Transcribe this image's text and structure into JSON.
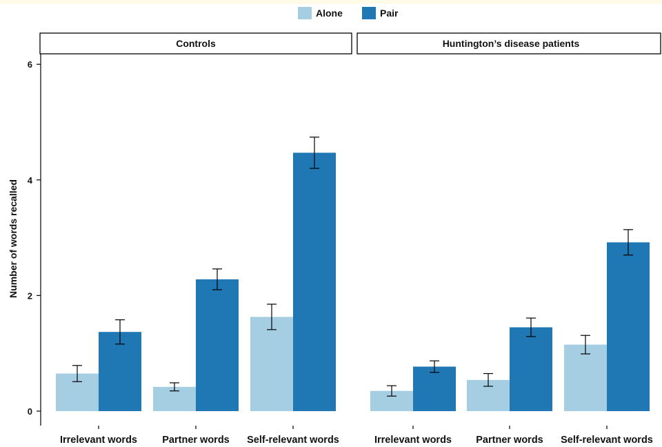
{
  "chart_data": {
    "type": "bar",
    "ylabel": "Number of words recalled",
    "ylim": [
      0,
      6
    ],
    "yticks": [
      0,
      2,
      4,
      6
    ],
    "categories": [
      "Irrelevant words",
      "Partner words",
      "Self-relevant words"
    ],
    "legend": {
      "placement": "top-center",
      "entries": [
        {
          "name": "Alone",
          "color": "#a6cee3"
        },
        {
          "name": "Pair",
          "color": "#1f78b4"
        }
      ]
    },
    "panels": [
      {
        "title": "Controls",
        "series": [
          {
            "name": "Alone",
            "values": [
              0.65,
              0.42,
              1.63
            ],
            "errors": [
              0.14,
              0.07,
              0.22
            ]
          },
          {
            "name": "Pair",
            "values": [
              1.37,
              2.28,
              4.47
            ],
            "errors": [
              0.21,
              0.18,
              0.27
            ]
          }
        ]
      },
      {
        "title": "Huntington’s disease patients",
        "series": [
          {
            "name": "Alone",
            "values": [
              0.35,
              0.54,
              1.15
            ],
            "errors": [
              0.09,
              0.11,
              0.16
            ]
          },
          {
            "name": "Pair",
            "values": [
              0.77,
              1.45,
              2.92
            ],
            "errors": [
              0.1,
              0.16,
              0.22
            ]
          }
        ]
      }
    ]
  }
}
